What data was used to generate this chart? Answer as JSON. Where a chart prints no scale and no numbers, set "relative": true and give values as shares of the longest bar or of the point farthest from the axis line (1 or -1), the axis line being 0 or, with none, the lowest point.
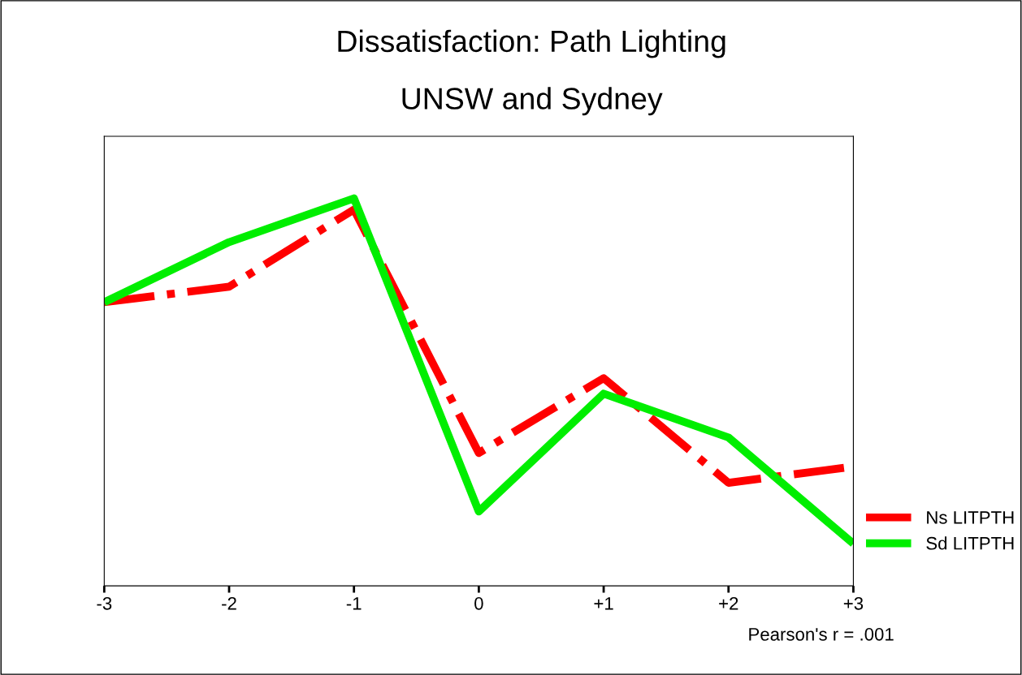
{
  "chart_data": {
    "type": "line",
    "title": "Dissatisfaction: Path Lighting",
    "subtitle": "UNSW and Sydney",
    "relative": true,
    "x": [
      -3,
      -2,
      -1,
      0,
      1,
      2,
      3
    ],
    "xlim": [
      -3,
      3
    ],
    "xticks": [
      -3,
      -2,
      -1,
      0,
      {
        "value": 1,
        "label": "+1"
      },
      {
        "value": 2,
        "label": "+2"
      },
      {
        "value": 3,
        "label": "+3"
      }
    ],
    "series": [
      {
        "name": "Ns LITPTH",
        "color": "#ff0000",
        "line_style": "dashdot",
        "values": [
          0.732,
          0.772,
          0.971,
          0.343,
          0.536,
          0.266,
          0.308
        ]
      },
      {
        "name": "Sd LITPTH",
        "color": "#00ee00",
        "line_style": "solid",
        "values": [
          0.732,
          0.887,
          1.0,
          0.192,
          0.496,
          0.383,
          0.109
        ]
      }
    ],
    "legend": "right",
    "grid": false,
    "marker": "none",
    "annotations": [
      "Pearson's r = .001"
    ]
  }
}
